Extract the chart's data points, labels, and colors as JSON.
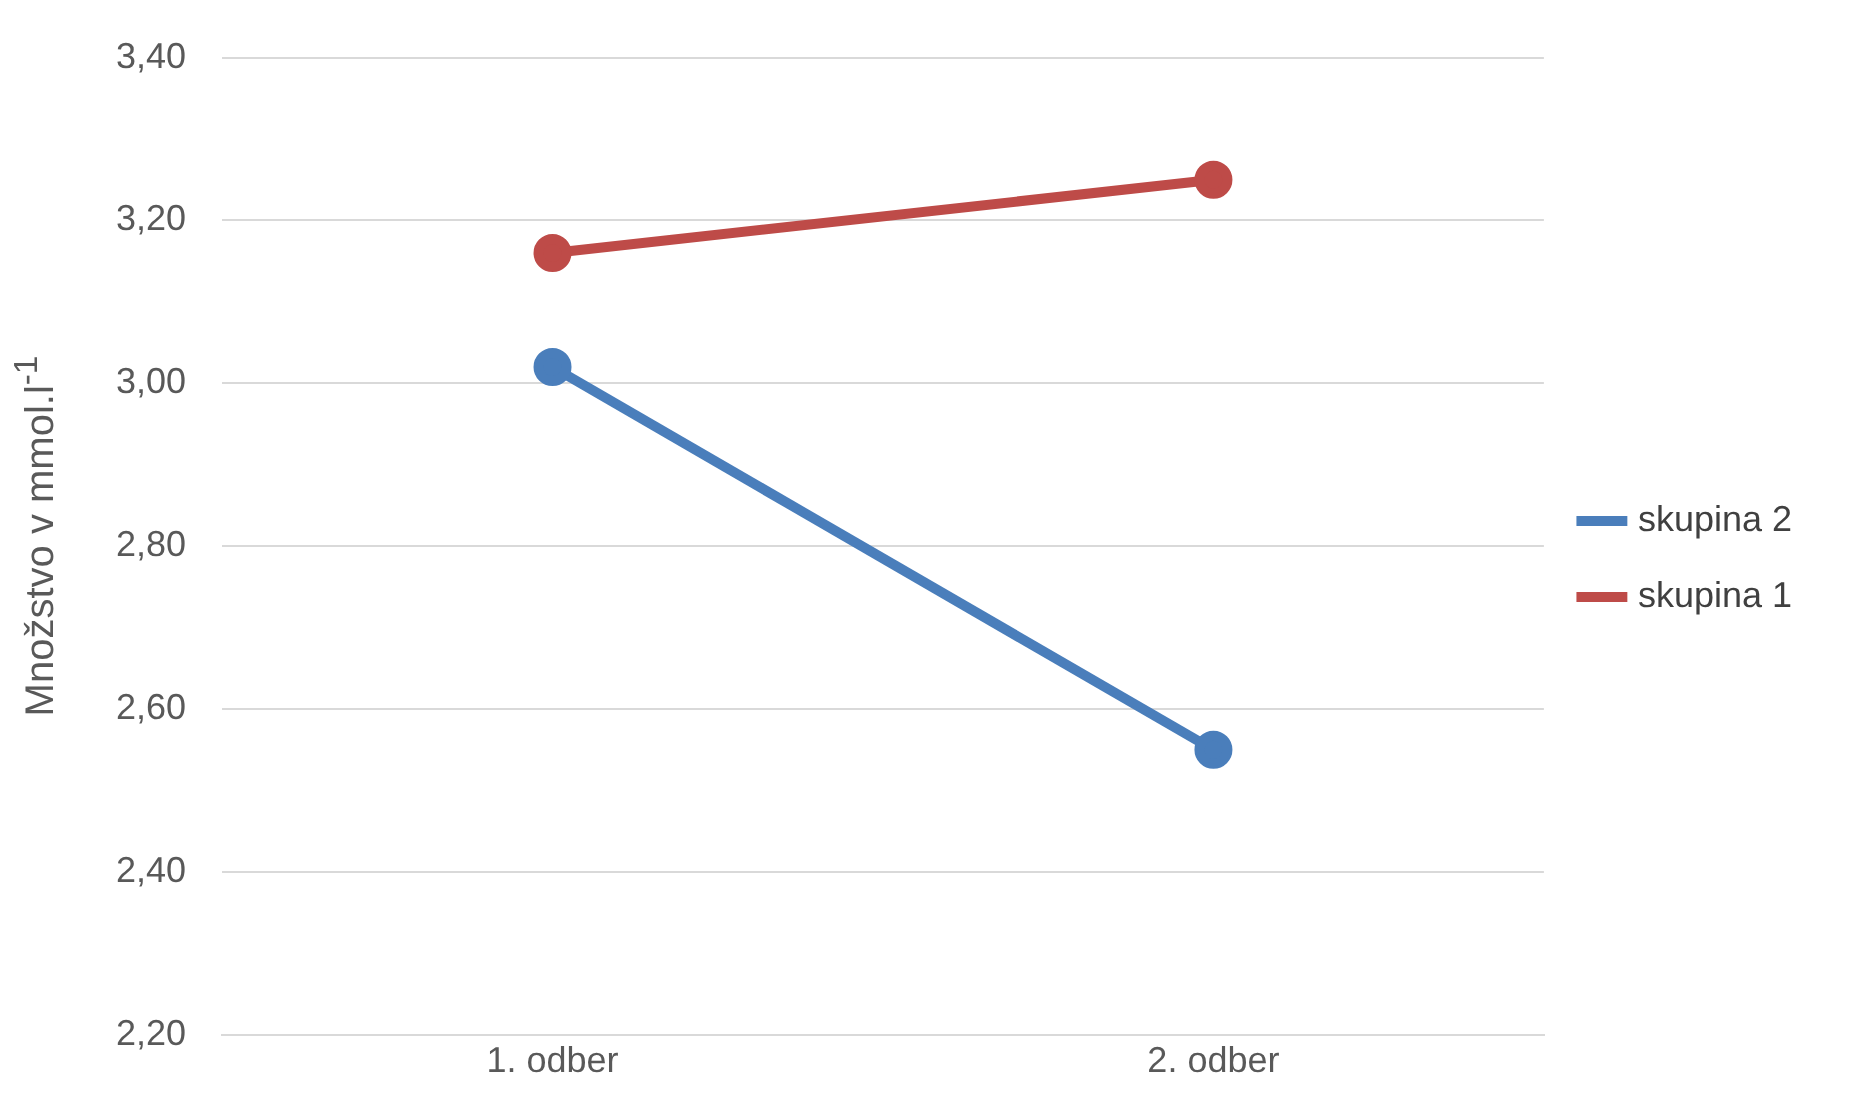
{
  "chart_data": {
    "type": "line",
    "ylabel": "Množstvo v mmol.l$^{-1}$",
    "categories": [
      "1. odber",
      "2. odber"
    ],
    "series": [
      {
        "name": "skupina 2",
        "color": "#4a7ebb",
        "values": [
          3.02,
          2.55
        ]
      },
      {
        "name": "skupina 1",
        "color": "#be4b48",
        "values": [
          3.16,
          3.25
        ]
      }
    ],
    "ylim": [
      2.2,
      3.4
    ],
    "yticks": [
      {
        "value": 2.2,
        "label": "2,20"
      },
      {
        "value": 2.4,
        "label": "2,40"
      },
      {
        "value": 2.6,
        "label": "2,60"
      },
      {
        "value": 2.8,
        "label": "2,80"
      },
      {
        "value": 3.0,
        "label": "3,00"
      },
      {
        "value": 3.2,
        "label": "3,20"
      },
      {
        "value": 3.4,
        "label": "3,40"
      }
    ],
    "grid": "y",
    "legend": "right",
    "marker": "circle",
    "line_style": "solid"
  }
}
